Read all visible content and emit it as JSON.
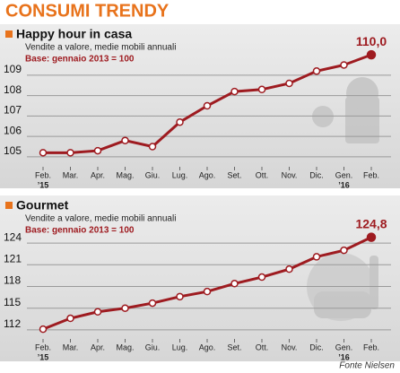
{
  "title": "CONSUMI TRENDY",
  "source": "Fonte Nielsen",
  "chart_data": [
    {
      "type": "line",
      "title": "Happy hour in casa",
      "subtitle": "Vendite a valore, medie mobili annuali",
      "base_note": "Base: gennaio 2013 = 100",
      "categories": [
        "Feb.",
        "Mar.",
        "Apr.",
        "Mag.",
        "Giu.",
        "Lug.",
        "Ago.",
        "Set.",
        "Ott.",
        "Nov.",
        "Dic.",
        "Gen.",
        "Feb."
      ],
      "year_labels": [
        "’15",
        null,
        null,
        null,
        null,
        null,
        null,
        null,
        null,
        null,
        null,
        "’16",
        null
      ],
      "values": [
        105.2,
        105.2,
        105.3,
        105.8,
        105.5,
        106.7,
        107.5,
        108.2,
        108.3,
        108.6,
        109.2,
        109.5,
        110.0
      ],
      "end_label": "110,0",
      "color": "#9e1b20",
      "ylim": [
        104.6,
        110.4
      ],
      "yticks": [
        105,
        106,
        107,
        108,
        109
      ],
      "grid": true
    },
    {
      "type": "line",
      "title": "Gourmet",
      "subtitle": "Vendite a valore, medie mobili annuali",
      "base_note": "Base: gennaio 2013 = 100",
      "categories": [
        "Feb.",
        "Mar.",
        "Apr.",
        "Mag.",
        "Giu.",
        "Lug.",
        "Ago.",
        "Set.",
        "Ott.",
        "Nov.",
        "Dic.",
        "Gen.",
        "Feb."
      ],
      "year_labels": [
        "’15",
        null,
        null,
        null,
        null,
        null,
        null,
        null,
        null,
        null,
        null,
        "’16",
        null
      ],
      "values": [
        112.1,
        113.6,
        114.5,
        115.0,
        115.7,
        116.6,
        117.3,
        118.4,
        119.3,
        120.4,
        122.1,
        123.0,
        124.8
      ],
      "end_label": "124,8",
      "color": "#9e1b20",
      "ylim": [
        111.0,
        125.5
      ],
      "yticks": [
        112,
        115,
        118,
        121,
        124
      ],
      "grid": true
    }
  ]
}
